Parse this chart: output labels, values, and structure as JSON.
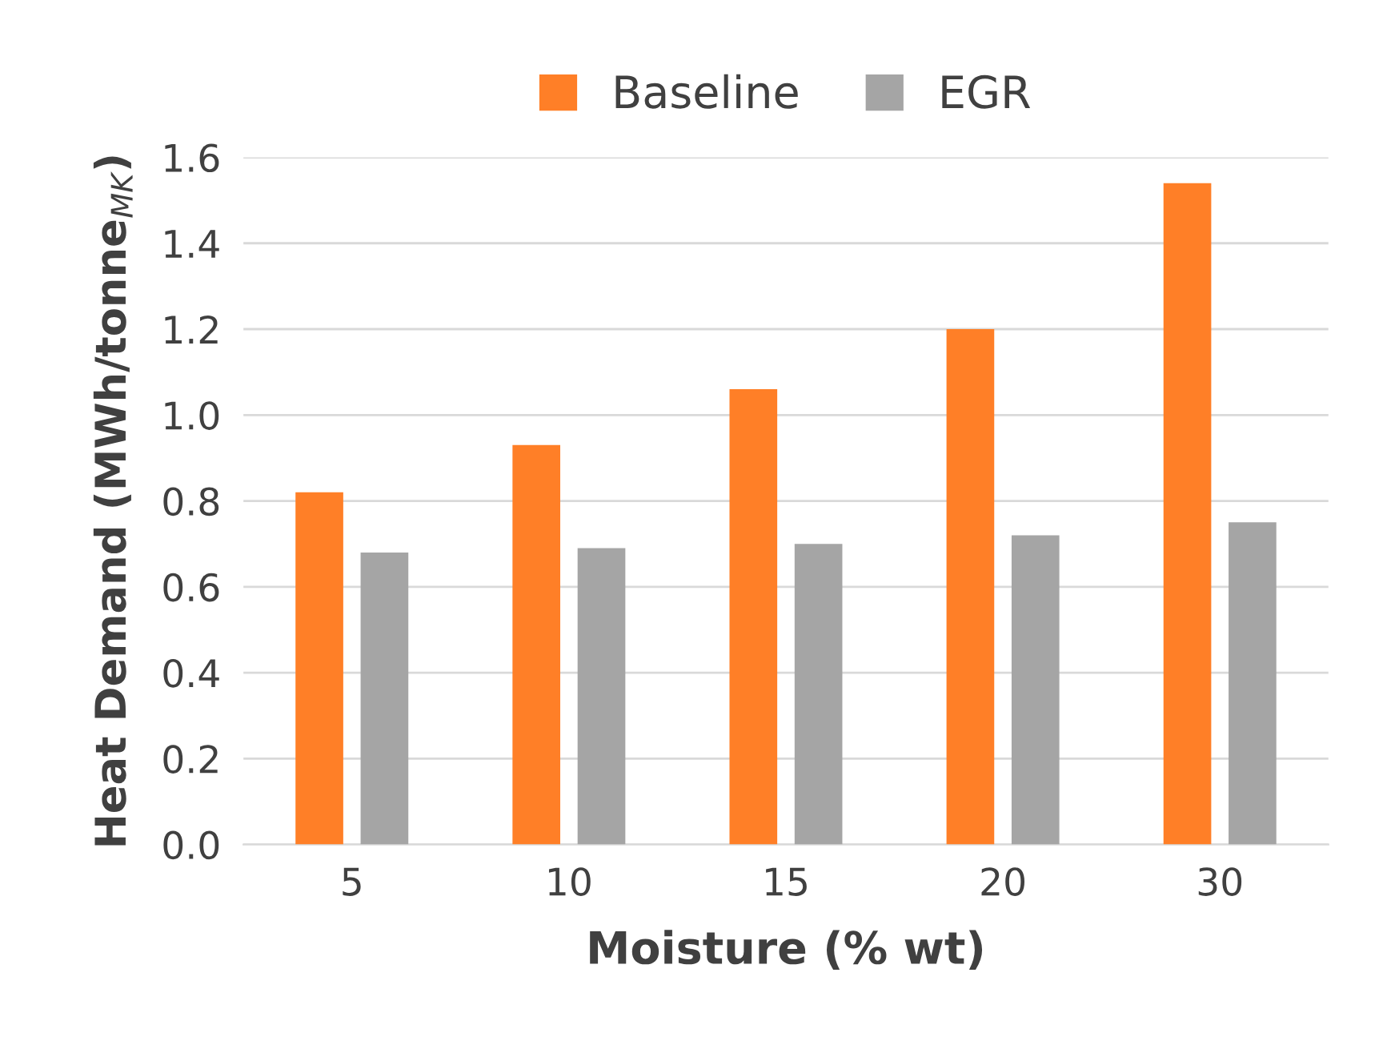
{
  "chart_data": {
    "type": "bar",
    "xlabel": "Moisture (% wt)",
    "ylabel": "Heat Demand (MWh/tonne$_{MK}$)",
    "categories": [
      "5",
      "10",
      "15",
      "20",
      "30"
    ],
    "series": [
      {
        "name": "Baseline",
        "color": "#ff7f27",
        "values": [
          0.82,
          0.93,
          1.06,
          1.2,
          1.54
        ]
      },
      {
        "name": "EGR",
        "color": "#a5a5a5",
        "values": [
          0.68,
          0.69,
          0.7,
          0.72,
          0.75
        ]
      }
    ],
    "ylim": [
      0,
      1.6
    ],
    "yticks": [
      {
        "value": 0,
        "label": "0.0"
      },
      0.2,
      0.4,
      0.6,
      0.8,
      {
        "value": 1,
        "label": "1.0"
      },
      1.2,
      1.4,
      1.6
    ],
    "grid": "y",
    "legend": "top"
  }
}
